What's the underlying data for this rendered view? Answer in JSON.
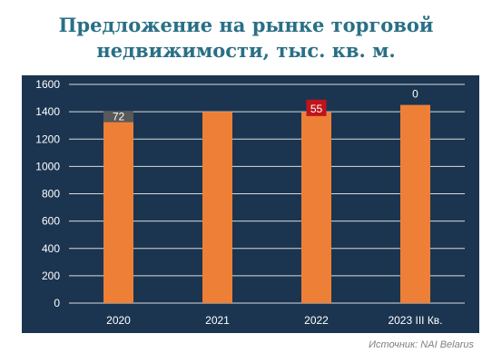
{
  "title_line1": "Предложение на рынке торговой",
  "title_line2": "недвижимости, тыс. кв. м.",
  "source": "Источник: NAI Belarus",
  "colors": {
    "panel": "#1b3550",
    "bar": "#ee7f36",
    "grid": "#d9d9d9",
    "text": "#ffffff",
    "title": "#2a6f86",
    "label_gray": "#595959",
    "label_red": "#c0141a"
  },
  "chart_data": {
    "type": "bar",
    "title": "Предложение на рынке торговой недвижимости, тыс. кв. м.",
    "categories": [
      "2020",
      "2021",
      "2022",
      "2023 III Кв."
    ],
    "values": [
      1330,
      1400,
      1395,
      1450
    ],
    "annotations": [
      "72",
      "",
      "55",
      "0"
    ],
    "annotation_styles": [
      "gray",
      "none",
      "red",
      "plain"
    ],
    "yticks": [
      0,
      200,
      400,
      600,
      800,
      1000,
      1200,
      1400,
      1600
    ],
    "ylim": [
      0,
      1600
    ],
    "grid": true,
    "legend": "none"
  }
}
